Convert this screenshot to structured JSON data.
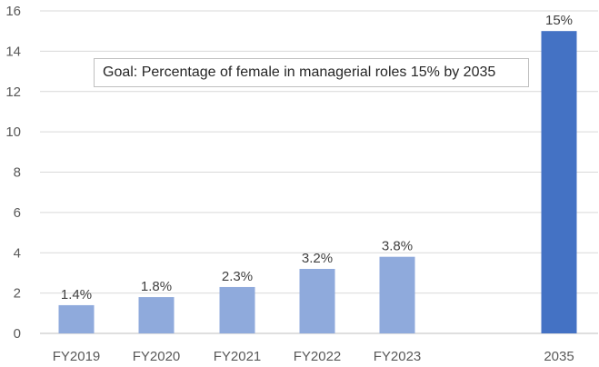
{
  "chart_data": {
    "type": "bar",
    "categories": [
      "FY2019",
      "FY2020",
      "FY2021",
      "FY2022",
      "FY2023",
      "2035"
    ],
    "values": [
      1.4,
      1.8,
      2.3,
      3.2,
      3.8,
      15
    ],
    "data_labels": [
      "1.4%",
      "1.8%",
      "2.3%",
      "3.2%",
      "3.8%",
      "15%"
    ],
    "title": "",
    "xlabel": "",
    "ylabel": "",
    "ylim": [
      0,
      16
    ],
    "yticks": [
      0,
      2,
      4,
      6,
      8,
      10,
      12,
      14,
      16
    ],
    "grid": true,
    "legend": "none",
    "colors": {
      "actual": "#8faadc",
      "goal": "#4472c4",
      "gridline": "#d9d9d9",
      "axis": "#bfbfbf"
    },
    "annotation": "Goal: Percentage of female in managerial roles 15% by 2035"
  }
}
